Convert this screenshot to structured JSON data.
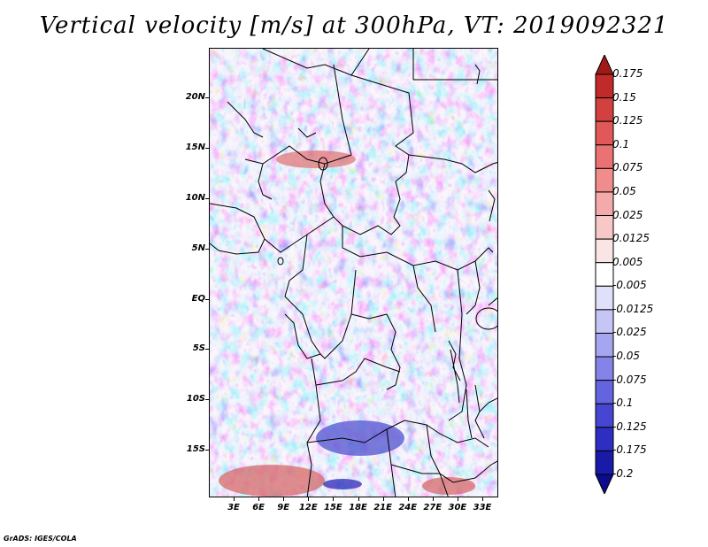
{
  "title": "Vertical velocity [m/s] at 300hPa, VT: 2019092321",
  "credit": "GrADS: IGES/COLA",
  "map": {
    "lat_labels": [
      "20N",
      "15N",
      "10N",
      "5N",
      "EQ",
      "5S",
      "10S",
      "15S"
    ],
    "lon_labels": [
      "3E",
      "6E",
      "9E",
      "12E",
      "15E",
      "18E",
      "21E",
      "24E",
      "27E",
      "30E",
      "33E"
    ],
    "lat_range": [
      -19.5,
      25
    ],
    "lon_range": [
      0,
      35
    ],
    "colors": {
      "negative": "#6f6fef",
      "neutral": "#f4eef4",
      "positive": "#ef8a8a",
      "strong_positive": "#d23232",
      "strong_negative": "#3232c8",
      "borders": "#000000"
    }
  },
  "colorbar": {
    "labels": [
      "0.175",
      "0.15",
      "0.125",
      "0.1",
      "0.075",
      "0.05",
      "0.025",
      "0.0125",
      "0.005",
      "-0.005",
      "-0.0125",
      "-0.025",
      "-0.05",
      "-0.075",
      "-0.1",
      "-0.125",
      "-0.175",
      "-0.2"
    ],
    "colors": [
      "#a01a1a",
      "#c12a2a",
      "#d24040",
      "#e05858",
      "#ea7272",
      "#f08c8c",
      "#f4aaaa",
      "#f8c8c8",
      "#fbe4e4",
      "#ffffff",
      "#e0e0fb",
      "#c6c6f6",
      "#a6a6f0",
      "#8484e8",
      "#6464e0",
      "#4646d2",
      "#2e2ec2",
      "#1a1aa8",
      "#0c0c8c"
    ]
  }
}
